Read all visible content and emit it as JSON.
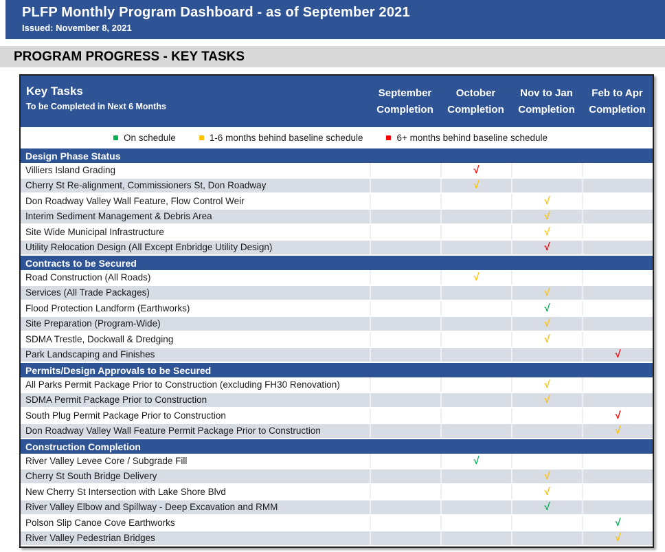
{
  "banner": {
    "title": "PLFP Monthly Program Dashboard - as of September 2021",
    "issued": "Issued: November 8, 2021"
  },
  "section_title": "PROGRAM PROGRESS - KEY TASKS",
  "colors": {
    "header_blue": "#2F5496",
    "shaded_row": "#D7DCE5",
    "gray_bar": "#D9D9D9",
    "green": "#00B050",
    "yellow": "#FFC000",
    "red": "#FF0000"
  },
  "table": {
    "check_glyph": "√",
    "key_tasks_title": "Key Tasks",
    "key_tasks_subtitle": "To be Completed in Next 6 Months",
    "columns": [
      {
        "line1": "September",
        "line2": "Completion",
        "key": "september"
      },
      {
        "line1": "October",
        "line2": "Completion",
        "key": "october"
      },
      {
        "line1": "Nov to Jan",
        "line2": "Completion",
        "key": "nov-jan"
      },
      {
        "line1": "Feb to Apr",
        "line2": "Completion",
        "key": "feb-apr"
      }
    ],
    "legend": [
      {
        "label": "On schedule",
        "color": "#00B050"
      },
      {
        "label": "1-6 months behind baseline schedule",
        "color": "#FFC000"
      },
      {
        "label": "6+ months behind baseline schedule",
        "color": "#FF0000"
      }
    ],
    "sections": [
      {
        "title": "Design Phase Status",
        "rows": [
          {
            "task": "Villiers Island Grading",
            "check_col": 1,
            "status": "red"
          },
          {
            "task": "Cherry St Re-alignment, Commissioners St, Don Roadway",
            "check_col": 1,
            "status": "yellow"
          },
          {
            "task": "Don Roadway Valley Wall Feature, Flow Control Weir",
            "check_col": 2,
            "status": "yellow"
          },
          {
            "task": "Interim Sediment Management & Debris Area",
            "check_col": 2,
            "status": "yellow"
          },
          {
            "task": "Site Wide Municipal Infrastructure",
            "check_col": 2,
            "status": "yellow"
          },
          {
            "task": "Utility Relocation Design (All Except Enbridge Utility Design)",
            "check_col": 2,
            "status": "red"
          }
        ]
      },
      {
        "title": "Contracts to be Secured",
        "rows": [
          {
            "task": "Road Construction (All Roads)",
            "check_col": 1,
            "status": "yellow"
          },
          {
            "task": "Services (All Trade Packages)",
            "check_col": 2,
            "status": "yellow"
          },
          {
            "task": "Flood Protection Landform (Earthworks)",
            "check_col": 2,
            "status": "green"
          },
          {
            "task": "Site Preparation (Program-Wide)",
            "check_col": 2,
            "status": "yellow"
          },
          {
            "task": "SDMA Trestle, Dockwall & Dredging",
            "check_col": 2,
            "status": "yellow"
          },
          {
            "task": "Park Landscaping and Finishes",
            "check_col": 3,
            "status": "red"
          }
        ]
      },
      {
        "title": "Permits/Design Approvals to be Secured",
        "rows": [
          {
            "task": "All Parks Permit Package Prior to Construction (excluding FH30 Renovation)",
            "check_col": 2,
            "status": "yellow"
          },
          {
            "task": "SDMA Permit Package Prior to Construction",
            "check_col": 2,
            "status": "yellow"
          },
          {
            "task": "South Plug Permit Package Prior to Construction",
            "check_col": 3,
            "status": "red"
          },
          {
            "task": "Don Roadway Valley Wall Feature Permit Package Prior to Construction",
            "check_col": 3,
            "status": "yellow"
          }
        ]
      },
      {
        "title": "Construction Completion",
        "rows": [
          {
            "task": "River Valley Levee Core / Subgrade Fill",
            "check_col": 1,
            "status": "green"
          },
          {
            "task": "Cherry St South Bridge Delivery",
            "check_col": 2,
            "status": "yellow"
          },
          {
            "task": "New Cherry St Intersection with Lake Shore Blvd",
            "check_col": 2,
            "status": "yellow"
          },
          {
            "task": "River Valley Elbow and Spillway - Deep Excavation and RMM",
            "check_col": 2,
            "status": "green"
          },
          {
            "task": "Polson Slip Canoe Cove Earthworks",
            "check_col": 3,
            "status": "green"
          },
          {
            "task": "River Valley Pedestrian Bridges",
            "check_col": 3,
            "status": "yellow"
          }
        ]
      }
    ]
  }
}
